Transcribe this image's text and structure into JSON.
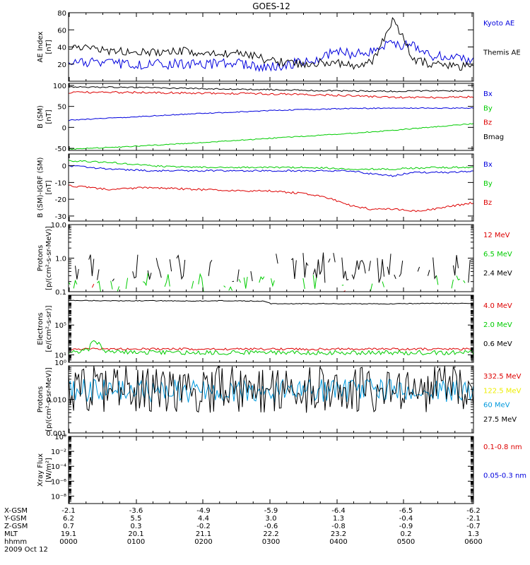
{
  "title": "GOES-12",
  "colors": {
    "black": "#000000",
    "red": "#dd0000",
    "green": "#00cc00",
    "blue": "#0000dd",
    "yellow": "#eeee00",
    "cyan": "#0099dd",
    "frame": "#000000"
  },
  "chart_data": [
    {
      "type": "line",
      "id": "ae",
      "ylabel": [
        "AE Index",
        "[nT]"
      ],
      "ylim": [
        0,
        80
      ],
      "yscale": "linear",
      "yticks": [
        {
          "v": 80,
          "l": "80"
        },
        {
          "v": 60,
          "l": "60"
        },
        {
          "v": 40,
          "l": "40"
        },
        {
          "v": 20,
          "l": "20"
        }
      ],
      "legend": [
        {
          "text": "Kyoto AE",
          "color": "blue"
        },
        {
          "text": "Themis AE",
          "color": "black"
        }
      ],
      "series": [
        {
          "name": "Kyoto AE",
          "color": "blue",
          "base": 17,
          "noise": 3,
          "x": [
            0,
            60,
            100,
            150,
            210,
            240,
            280,
            315,
            345,
            360,
            395,
            420,
            450,
            480,
            510,
            540,
            570,
            600
          ],
          "y": [
            23,
            20,
            20,
            20,
            20,
            22,
            18,
            18,
            22,
            25,
            35,
            32,
            35,
            45,
            40,
            30,
            28,
            25
          ]
        },
        {
          "name": "Themis AE",
          "color": "black",
          "base": 41,
          "noise": 2.5,
          "x": [
            0,
            30,
            60,
            120,
            180,
            210,
            240,
            270,
            300,
            345,
            360,
            390,
            420,
            450,
            465,
            480,
            495,
            510,
            540,
            570,
            600
          ],
          "y": [
            42,
            38,
            35,
            33,
            35,
            32,
            33,
            30,
            24,
            20,
            22,
            22,
            18,
            22,
            45,
            70,
            55,
            25,
            20,
            18,
            17
          ]
        }
      ]
    },
    {
      "type": "line",
      "id": "bsm",
      "ylabel": [
        "B (SM)",
        "[nT]"
      ],
      "ylim": [
        -55,
        105
      ],
      "yscale": "linear",
      "yticks": [
        {
          "v": 100,
          "l": "100"
        },
        {
          "v": 50,
          "l": "50"
        },
        {
          "v": 0,
          "l": "0"
        },
        {
          "v": -50,
          "l": "-50"
        }
      ],
      "legend": [
        {
          "text": "Bx",
          "color": "blue"
        },
        {
          "text": "By",
          "color": "green"
        },
        {
          "text": "Bz",
          "color": "red"
        },
        {
          "text": "Bmag",
          "color": "black"
        }
      ],
      "series": [
        {
          "name": "Bx",
          "color": "blue",
          "base": 11,
          "noise": 0.3,
          "x": [
            0,
            60,
            120,
            180,
            240,
            300,
            360,
            420,
            480,
            540,
            600
          ],
          "y": [
            17,
            22,
            27,
            32,
            36,
            40,
            43,
            45,
            46,
            46,
            46
          ]
        },
        {
          "name": "By",
          "color": "green",
          "base": 12,
          "noise": 0.3,
          "x": [
            0,
            60,
            120,
            180,
            240,
            300,
            360,
            420,
            480,
            540,
            600
          ],
          "y": [
            -52,
            -48,
            -43,
            -38,
            -32,
            -26,
            -20,
            -14,
            -7,
            1,
            9
          ]
        },
        {
          "name": "Bz",
          "color": "red",
          "base": 13,
          "noise": 0.6,
          "x": [
            0,
            60,
            120,
            180,
            240,
            300,
            360,
            420,
            480,
            540,
            600
          ],
          "y": [
            83,
            84,
            83,
            82,
            81,
            80,
            78,
            76,
            71,
            71,
            73
          ]
        },
        {
          "name": "Bmag",
          "color": "black",
          "base": 14,
          "noise": 0.4,
          "x": [
            0,
            60,
            120,
            180,
            240,
            300,
            360,
            420,
            480,
            540,
            600
          ],
          "y": [
            97,
            96,
            95,
            93,
            91,
            90,
            88,
            87,
            86,
            87,
            87
          ]
        }
      ]
    },
    {
      "type": "line",
      "id": "bdiff",
      "ylabel": [
        "B (SM)-IGRF (SM)",
        "[nT]"
      ],
      "ylim": [
        -33,
        7
      ],
      "yscale": "linear",
      "yticks": [
        {
          "v": 0,
          "l": "0"
        },
        {
          "v": -10,
          "l": "-10"
        },
        {
          "v": -20,
          "l": "-20"
        },
        {
          "v": -30,
          "l": "-30"
        }
      ],
      "legend": [
        {
          "text": "Bx",
          "color": "blue"
        },
        {
          "text": "By",
          "color": "green"
        },
        {
          "text": "Bz",
          "color": "red"
        }
      ],
      "series": [
        {
          "name": "Bx",
          "color": "blue",
          "base": 21,
          "noise": 0.5,
          "x": [
            0,
            60,
            120,
            180,
            240,
            300,
            360,
            420,
            450,
            480,
            510,
            540,
            570,
            600
          ],
          "y": [
            0,
            -2,
            -3,
            -3,
            -3,
            -3,
            -3,
            -3,
            -5,
            -6,
            -4,
            -4,
            -4,
            -3
          ]
        },
        {
          "name": "By",
          "color": "green",
          "base": 22,
          "noise": 0.5,
          "x": [
            0,
            60,
            120,
            180,
            240,
            300,
            360,
            420,
            480,
            540,
            600
          ],
          "y": [
            3,
            2,
            0,
            -1,
            -1,
            -1,
            -1,
            -2,
            -2,
            -1,
            -1
          ]
        },
        {
          "name": "Bz",
          "color": "red",
          "base": 23,
          "noise": 0.6,
          "x": [
            0,
            60,
            120,
            180,
            240,
            300,
            330,
            360,
            390,
            420,
            450,
            480,
            510,
            540,
            570,
            600
          ],
          "y": [
            -12,
            -14,
            -13,
            -14,
            -15,
            -15,
            -16,
            -17,
            -20,
            -24,
            -26,
            -26,
            -27,
            -26,
            -24,
            -22
          ]
        }
      ]
    },
    {
      "type": "line",
      "id": "protons",
      "ylabel": [
        "Protons",
        "[p/(cm²-s-sr-MeV)]"
      ],
      "ylim": [
        0.1,
        10
      ],
      "yscale": "log",
      "yticks": [
        {
          "v": 10,
          "l": "10.0"
        },
        {
          "v": 1,
          "l": "1.0"
        },
        {
          "v": 0.1,
          "l": "0.1"
        }
      ],
      "legend": [
        {
          "text": "12 MeV",
          "color": "red"
        },
        {
          "text": "6.5 MeV",
          "color": "green"
        },
        {
          "text": "2.4 MeV",
          "color": "black"
        }
      ],
      "series": [
        {
          "name": "12 MeV",
          "color": "red",
          "base": 31,
          "mode": "spiky",
          "lo": 0.1,
          "hi": 0.2,
          "prob": 0.1
        },
        {
          "name": "6.5 MeV",
          "color": "green",
          "base": 32,
          "mode": "spiky",
          "lo": 0.1,
          "hi": 0.35,
          "prob": 0.45
        },
        {
          "name": "2.4 MeV",
          "color": "black",
          "base": 33,
          "mode": "spiky",
          "lo": 0.18,
          "hi": 1.5,
          "prob": 0.5
        }
      ]
    },
    {
      "type": "line",
      "id": "electrons",
      "ylabel": [
        "Electrons",
        "[e/(cm²-s-sr)]"
      ],
      "ylim": [
        1,
        1000000000
      ],
      "yscale": "log",
      "yticks": [
        {
          "v": 1,
          "l": "10⁰"
        },
        {
          "v": 10,
          "l": "10¹"
        },
        {
          "v": 100000,
          "l": "10⁵"
        }
      ],
      "legend": [
        {
          "text": "4.0 MeV",
          "color": "red"
        },
        {
          "text": "2.0 MeV",
          "color": "green"
        },
        {
          "text": "0.6 MeV",
          "color": "black"
        }
      ],
      "series": [
        {
          "name": "4.0 MeV",
          "color": "red",
          "base": 41,
          "noise": 0.15,
          "log": true,
          "x": [
            0,
            600
          ],
          "y": [
            60,
            60
          ]
        },
        {
          "name": "2.0 MeV",
          "color": "green",
          "base": 42,
          "noise": 0.3,
          "log": true,
          "x": [
            0,
            30,
            40,
            50,
            60,
            120,
            600
          ],
          "y": [
            25,
            40,
            600,
            40,
            25,
            20,
            20
          ]
        },
        {
          "name": "0.6 MeV",
          "color": "black",
          "base": 43,
          "noise": 0.05,
          "log": true,
          "x": [
            0,
            60,
            120,
            180,
            240,
            290,
            300,
            360,
            420,
            480,
            540,
            600
          ],
          "y": [
            200000000,
            180000000,
            180000000,
            170000000,
            180000000,
            160000000,
            70000000,
            75000000,
            70000000,
            70000000,
            80000000,
            80000000
          ]
        }
      ]
    },
    {
      "type": "line",
      "id": "hprotons",
      "ylabel": [
        "Protons",
        "[p/(cm²-s-sr-MeV)]"
      ],
      "ylim": [
        0.001,
        0.1
      ],
      "yscale": "log",
      "yticks": [
        {
          "v": 0.01,
          "l": "0.010"
        },
        {
          "v": 0.001,
          "l": "0.001"
        }
      ],
      "legend": [
        {
          "text": "332.5 MeV",
          "color": "red"
        },
        {
          "text": "122.5 MeV",
          "color": "yellow"
        },
        {
          "text": "60 MeV",
          "color": "cyan"
        },
        {
          "text": "27.5 MeV",
          "color": "black"
        }
      ],
      "series": [
        {
          "name": "60 MeV",
          "color": "cyan",
          "base": 51,
          "noise": 0.35,
          "log": true,
          "x": [
            0,
            600
          ],
          "y": [
            0.018,
            0.018
          ]
        },
        {
          "name": "27.5 MeV",
          "color": "black",
          "base": 52,
          "noise": 0.7,
          "log": true,
          "x": [
            0,
            600
          ],
          "y": [
            0.02,
            0.02
          ]
        }
      ]
    },
    {
      "type": "line",
      "id": "xray",
      "ylabel": [
        "Xray Flux",
        "[W/m²]"
      ],
      "ylim": [
        1e-09,
        1
      ],
      "yscale": "log",
      "yticks": [
        {
          "v": 1,
          "l": "10⁰"
        },
        {
          "v": 0.01,
          "l": "10⁻²"
        },
        {
          "v": 0.0001,
          "l": "10⁻⁴"
        },
        {
          "v": 1e-06,
          "l": "10⁻⁶"
        },
        {
          "v": 1e-08,
          "l": "10⁻⁸"
        }
      ],
      "legend": [
        {
          "text": "0.1-0.8 nm",
          "color": "red"
        },
        {
          "text": "0.05-0.3 nm",
          "color": "blue"
        }
      ],
      "series": []
    }
  ],
  "footer": {
    "row_labels": [
      "X-GSM",
      "Y-GSM",
      "Z-GSM",
      "MLT",
      "hhmm"
    ],
    "columns": [
      {
        "x": 0,
        "vals": [
          "-2.1",
          "6.2",
          "0.7",
          "19.1",
          "0000"
        ]
      },
      {
        "x": 100,
        "vals": [
          "-3.6",
          "5.5",
          "0.3",
          "20.1",
          "0100"
        ]
      },
      {
        "x": 200,
        "vals": [
          "-4.9",
          "4.4",
          "-0.2",
          "21.1",
          "0200"
        ]
      },
      {
        "x": 300,
        "vals": [
          "-5.9",
          "3.0",
          "-0.6",
          "22.2",
          "0300"
        ]
      },
      {
        "x": 400,
        "vals": [
          "-6.4",
          "1.3",
          "-0.8",
          "23.2",
          "0400"
        ]
      },
      {
        "x": 500,
        "vals": [
          "-6.5",
          "-0.4",
          "-0.9",
          "0.2",
          "0500"
        ]
      },
      {
        "x": 600,
        "vals": [
          "-6.2",
          "-2.1",
          "-0.7",
          "1.3",
          "0600"
        ]
      }
    ],
    "date": "2009 Oct 12"
  }
}
